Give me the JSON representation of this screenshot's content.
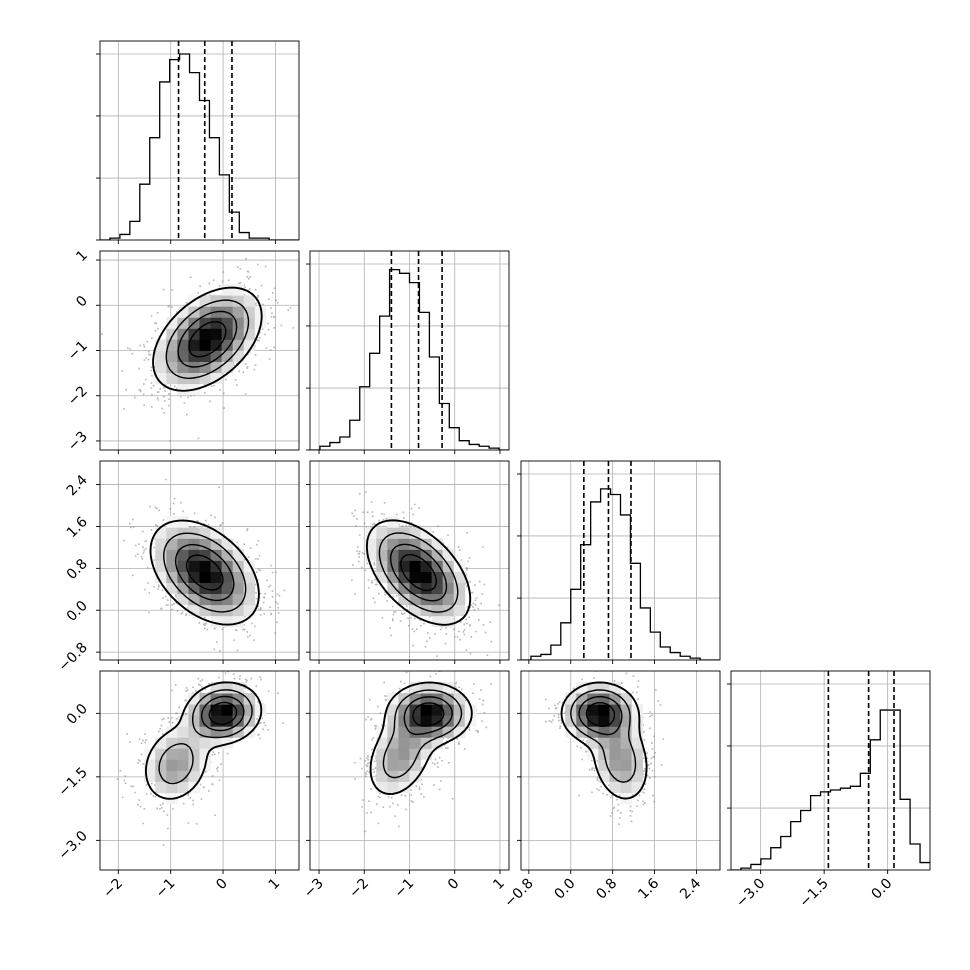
{
  "chart_data": {
    "type": "corner",
    "n_params": 4,
    "grid": true,
    "quantile_lines": "dashed",
    "colors": {
      "line": "#000000",
      "grid": "#b0b0b0",
      "points": "#7a7a7a",
      "density_dark": "#000000",
      "density_light": "#ffffff"
    },
    "params": [
      {
        "index": 0,
        "range": [
          -2.35,
          1.45
        ],
        "ticks": [
          -2,
          -1,
          0,
          1
        ],
        "tick_labels": [
          "−2",
          "−1",
          "0",
          "1"
        ],
        "quantiles": [
          -0.85,
          -0.35,
          0.17
        ],
        "hist": {
          "edges_start": -2.35,
          "bin_width": 0.19,
          "counts": [
            0,
            0.01,
            0.03,
            0.1,
            0.3,
            0.55,
            0.85,
            0.97,
            1.0,
            0.9,
            0.75,
            0.55,
            0.35,
            0.15,
            0.04,
            0.01,
            0.01,
            0,
            0,
            0
          ]
        }
      },
      {
        "index": 1,
        "range": [
          -3.2,
          1.2
        ],
        "ticks": [
          -3,
          -2,
          -1,
          0,
          1
        ],
        "tick_labels": [
          "−3",
          "−2",
          "−1",
          "0",
          "1"
        ],
        "quantiles": [
          -1.4,
          -0.8,
          -0.28
        ],
        "hist": {
          "edges_start": -3.2,
          "bin_width": 0.22,
          "counts": [
            0,
            0.02,
            0.04,
            0.07,
            0.16,
            0.34,
            0.52,
            0.72,
            0.97,
            0.95,
            0.9,
            0.74,
            0.5,
            0.25,
            0.12,
            0.05,
            0.03,
            0.02,
            0.01,
            0
          ]
        }
      },
      {
        "index": 2,
        "range": [
          -0.95,
          2.85
        ],
        "ticks": [
          -0.8,
          0.0,
          0.8,
          1.6,
          2.4
        ],
        "tick_labels": [
          "−0.8",
          "0.0",
          "0.8",
          "1.6",
          "2.4"
        ],
        "quantiles": [
          0.25,
          0.72,
          1.15
        ],
        "hist": {
          "edges_start": -0.95,
          "bin_width": 0.19,
          "counts": [
            0,
            0.02,
            0.03,
            0.08,
            0.2,
            0.38,
            0.62,
            0.85,
            0.92,
            0.89,
            0.78,
            0.52,
            0.28,
            0.15,
            0.07,
            0.04,
            0.02,
            0.01,
            0,
            0
          ]
        }
      },
      {
        "index": 3,
        "range": [
          -3.7,
          1.0
        ],
        "ticks": [
          -3.0,
          -1.5,
          0.0
        ],
        "tick_labels": [
          "−3.0",
          "−1.5",
          "0.0"
        ],
        "quantiles": [
          -1.4,
          -0.45,
          0.15
        ],
        "hist": {
          "edges_start": -3.7,
          "bin_width": 0.235,
          "counts": [
            0,
            0.01,
            0.03,
            0.06,
            0.12,
            0.18,
            0.26,
            0.32,
            0.4,
            0.42,
            0.43,
            0.44,
            0.45,
            0.52,
            0.7,
            0.86,
            0.86,
            0.38,
            0.14,
            0.04
          ]
        }
      }
    ],
    "pairs": [
      {
        "x": 0,
        "y": 1,
        "components": [
          {
            "w": 1.0,
            "mx": -0.3,
            "my": -0.75,
            "sx": 0.5,
            "sy": 0.55,
            "rho": 0.45
          }
        ]
      },
      {
        "x": 0,
        "y": 2,
        "components": [
          {
            "w": 1.0,
            "mx": -0.35,
            "my": 0.72,
            "sx": 0.5,
            "sy": 0.48,
            "rho": -0.42
          }
        ]
      },
      {
        "x": 1,
        "y": 2,
        "components": [
          {
            "w": 1.0,
            "mx": -0.8,
            "my": 0.72,
            "sx": 0.55,
            "sy": 0.48,
            "rho": -0.5
          }
        ]
      },
      {
        "x": 0,
        "y": 3,
        "components": [
          {
            "w": 0.62,
            "mx": 0.0,
            "my": 0.0,
            "sx": 0.35,
            "sy": 0.35,
            "rho": 0.1
          },
          {
            "w": 0.38,
            "mx": -0.9,
            "my": -1.2,
            "sx": 0.35,
            "sy": 0.5,
            "rho": 0.2
          }
        ]
      },
      {
        "x": 1,
        "y": 3,
        "components": [
          {
            "w": 0.62,
            "mx": -0.55,
            "my": 0.0,
            "sx": 0.45,
            "sy": 0.35,
            "rho": 0.0
          },
          {
            "w": 0.38,
            "mx": -1.2,
            "my": -1.0,
            "sx": 0.4,
            "sy": 0.55,
            "rho": 0.35
          }
        ]
      },
      {
        "x": 2,
        "y": 3,
        "components": [
          {
            "w": 0.62,
            "mx": 0.55,
            "my": 0.0,
            "sx": 0.35,
            "sy": 0.35,
            "rho": 0.0
          },
          {
            "w": 0.38,
            "mx": 0.95,
            "my": -1.1,
            "sx": 0.3,
            "sy": 0.55,
            "rho": -0.2
          }
        ]
      }
    ]
  }
}
